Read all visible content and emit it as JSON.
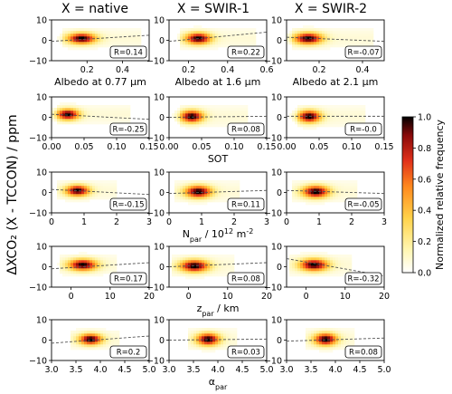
{
  "figure": {
    "column_titles": [
      "X = native",
      "X = SWIR-1",
      "X = SWIR-2"
    ],
    "ylabel": "ΔXCO₂ (X - TCCON) / ppm",
    "colorbar": {
      "label": "Normalized relative frequency",
      "ticks": [
        "0.0",
        "0.2",
        "0.4",
        "0.6",
        "0.8",
        "1.0"
      ],
      "colors": [
        "#ffffff",
        "#fff6b0",
        "#ffd24a",
        "#ff8a1e",
        "#e0301a",
        "#8a0a0a",
        "#000000"
      ]
    }
  },
  "chart_data": [
    {
      "type": "heatmap",
      "row": 0,
      "col": 0,
      "xlabel": "Albedo at 0.77 μm",
      "xlim": [
        0,
        0.55
      ],
      "ylim": [
        -10,
        10
      ],
      "xticks": [
        {
          "v": 0.2,
          "t": "0.2"
        },
        {
          "v": 0.4,
          "t": "0.4"
        }
      ],
      "yticks": [
        {
          "v": -10,
          "t": "−10"
        },
        {
          "v": 0,
          "t": "0"
        },
        {
          "v": 10,
          "t": "10"
        }
      ],
      "center": [
        0.17,
        1.0
      ],
      "spread": [
        0.055,
        1.8
      ],
      "cloud_x": [
        0.06,
        0.5
      ],
      "fit": {
        "x": [
          0,
          0.55
        ],
        "y": [
          -0.5,
          2.5
        ]
      },
      "r_label": "R=0.14"
    },
    {
      "type": "heatmap",
      "row": 0,
      "col": 1,
      "xlabel": "Albedo at 1.6 μm",
      "xlim": [
        0.1,
        0.6
      ],
      "ylim": [
        -10,
        10
      ],
      "xticks": [
        {
          "v": 0.2,
          "t": "0.2"
        },
        {
          "v": 0.4,
          "t": "0.4"
        },
        {
          "v": 0.6,
          "t": "0.6"
        }
      ],
      "yticks": [
        {
          "v": -10,
          "t": "−10"
        },
        {
          "v": 0,
          "t": "0"
        },
        {
          "v": 10,
          "t": "10"
        }
      ],
      "center": [
        0.25,
        1.0
      ],
      "spread": [
        0.045,
        1.9
      ],
      "cloud_x": [
        0.15,
        0.55
      ],
      "fit": {
        "x": [
          0.1,
          0.6
        ],
        "y": [
          -0.5,
          4.0
        ]
      },
      "r_label": "R=0.22"
    },
    {
      "type": "heatmap",
      "row": 0,
      "col": 2,
      "xlabel": "Albedo at 2.1 μm",
      "xlim": [
        0.05,
        0.5
      ],
      "ylim": [
        -10,
        10
      ],
      "xticks": [
        {
          "v": 0.2,
          "t": "0.2"
        },
        {
          "v": 0.4,
          "t": "0.4"
        }
      ],
      "yticks": [
        {
          "v": -10,
          "t": "−10"
        },
        {
          "v": 0,
          "t": "0"
        },
        {
          "v": 10,
          "t": "10"
        }
      ],
      "center": [
        0.15,
        1.0
      ],
      "spread": [
        0.045,
        1.9
      ],
      "cloud_x": [
        0.08,
        0.45
      ],
      "fit": {
        "x": [
          0.05,
          0.5
        ],
        "y": [
          1.5,
          -0.5
        ]
      },
      "r_label": "R=-0.07"
    },
    {
      "type": "heatmap",
      "row": 1,
      "col": 0,
      "xlabel": "",
      "xlim": [
        0,
        0.15
      ],
      "ylim": [
        -10,
        10
      ],
      "xticks": [
        {
          "v": 0.0,
          "t": "0.00"
        },
        {
          "v": 0.05,
          "t": "0.05"
        },
        {
          "v": 0.1,
          "t": "0.10"
        },
        {
          "v": 0.15,
          "t": "0.15"
        }
      ],
      "yticks": [
        {
          "v": -10,
          "t": "−10"
        },
        {
          "v": 0,
          "t": "0"
        },
        {
          "v": 10,
          "t": "10"
        }
      ],
      "center": [
        0.025,
        1.5
      ],
      "spread": [
        0.012,
        1.8
      ],
      "cloud_x": [
        0.01,
        0.12
      ],
      "fit": {
        "x": [
          0,
          0.15
        ],
        "y": [
          1.5,
          -1.0
        ]
      },
      "r_label": "R=-0.25"
    },
    {
      "type": "heatmap",
      "row": 1,
      "col": 1,
      "xlabel": "SOT",
      "xlim": [
        0,
        0.15
      ],
      "ylim": [
        -10,
        10
      ],
      "xticks": [
        {
          "v": 0.0,
          "t": "0.00"
        },
        {
          "v": 0.05,
          "t": "0.05"
        },
        {
          "v": 0.1,
          "t": "0.10"
        },
        {
          "v": 0.15,
          "t": "0.15"
        }
      ],
      "yticks": [
        {
          "v": -10,
          "t": "−10"
        },
        {
          "v": 0,
          "t": "0"
        },
        {
          "v": 10,
          "t": "10"
        }
      ],
      "center": [
        0.035,
        0.5
      ],
      "spread": [
        0.012,
        2.0
      ],
      "cloud_x": [
        0.015,
        0.12
      ],
      "fit": {
        "x": [
          0,
          0.15
        ],
        "y": [
          0.0,
          0.5
        ]
      },
      "r_label": "R=0.08"
    },
    {
      "type": "heatmap",
      "row": 1,
      "col": 2,
      "xlabel": "",
      "xlim": [
        0,
        0.15
      ],
      "ylim": [
        -10,
        10
      ],
      "xticks": [
        {
          "v": 0.0,
          "t": "0.00"
        },
        {
          "v": 0.05,
          "t": "0.05"
        },
        {
          "v": 0.1,
          "t": "0.10"
        },
        {
          "v": 0.15,
          "t": "0.15"
        }
      ],
      "yticks": [
        {
          "v": -10,
          "t": "−10"
        },
        {
          "v": 0,
          "t": "0"
        },
        {
          "v": 10,
          "t": "10"
        }
      ],
      "center": [
        0.035,
        0.5
      ],
      "spread": [
        0.012,
        2.0
      ],
      "cloud_x": [
        0.015,
        0.12
      ],
      "fit": {
        "x": [
          0,
          0.15
        ],
        "y": [
          0.5,
          0.5
        ]
      },
      "r_label": "R=-0.0"
    },
    {
      "type": "heatmap",
      "row": 2,
      "col": 0,
      "xlabel": "",
      "xlim": [
        0,
        3
      ],
      "ylim": [
        -10,
        10
      ],
      "xticks": [
        {
          "v": 0,
          "t": "0"
        },
        {
          "v": 1,
          "t": "1"
        },
        {
          "v": 2,
          "t": "2"
        },
        {
          "v": 3,
          "t": "3"
        }
      ],
      "yticks": [
        {
          "v": -10,
          "t": "−10"
        },
        {
          "v": 0,
          "t": "0"
        },
        {
          "v": 10,
          "t": "10"
        }
      ],
      "center": [
        0.8,
        1.0
      ],
      "spread": [
        0.25,
        1.8
      ],
      "cloud_x": [
        0.2,
        2.0
      ],
      "fit": {
        "x": [
          0,
          3
        ],
        "y": [
          1.5,
          -1.0
        ]
      },
      "r_label": "R=-0.15"
    },
    {
      "type": "heatmap",
      "row": 2,
      "col": 1,
      "xlabel": "N_par / 10^12 m^-2",
      "xlim": [
        0,
        3
      ],
      "ylim": [
        -10,
        10
      ],
      "xticks": [
        {
          "v": 0,
          "t": "0"
        },
        {
          "v": 1,
          "t": "1"
        },
        {
          "v": 2,
          "t": "2"
        },
        {
          "v": 3,
          "t": "3"
        }
      ],
      "yticks": [
        {
          "v": -10,
          "t": "−10"
        },
        {
          "v": 0,
          "t": "0"
        },
        {
          "v": 10,
          "t": "10"
        }
      ],
      "center": [
        0.9,
        0.5
      ],
      "spread": [
        0.28,
        2.0
      ],
      "cloud_x": [
        0.2,
        2.2
      ],
      "fit": {
        "x": [
          0,
          3
        ],
        "y": [
          -0.5,
          1.0
        ]
      },
      "r_label": "R=0.11"
    },
    {
      "type": "heatmap",
      "row": 2,
      "col": 2,
      "xlabel": "",
      "xlim": [
        0,
        3
      ],
      "ylim": [
        -10,
        10
      ],
      "xticks": [
        {
          "v": 0,
          "t": "0"
        },
        {
          "v": 1,
          "t": "1"
        },
        {
          "v": 2,
          "t": "2"
        },
        {
          "v": 3,
          "t": "3"
        }
      ],
      "yticks": [
        {
          "v": -10,
          "t": "−10"
        },
        {
          "v": 0,
          "t": "0"
        },
        {
          "v": 10,
          "t": "10"
        }
      ],
      "center": [
        0.9,
        0.5
      ],
      "spread": [
        0.28,
        2.0
      ],
      "cloud_x": [
        0.2,
        2.2
      ],
      "fit": {
        "x": [
          0,
          3
        ],
        "y": [
          1.0,
          -0.5
        ]
      },
      "r_label": "R=-0.05"
    },
    {
      "type": "heatmap",
      "row": 3,
      "col": 0,
      "xlabel": "",
      "xlim": [
        -5,
        20
      ],
      "ylim": [
        -10,
        10
      ],
      "xticks": [
        {
          "v": 0,
          "t": "0"
        },
        {
          "v": 10,
          "t": "10"
        },
        {
          "v": 20,
          "t": "20"
        }
      ],
      "yticks": [
        {
          "v": -10,
          "t": "−10"
        },
        {
          "v": 0,
          "t": "0"
        },
        {
          "v": 10,
          "t": "10"
        }
      ],
      "center": [
        3,
        1.0
      ],
      "spread": [
        2.5,
        1.9
      ],
      "cloud_x": [
        -3,
        12
      ],
      "fit": {
        "x": [
          -5,
          20
        ],
        "y": [
          -1.0,
          2.0
        ]
      },
      "r_label": "R=0.17"
    },
    {
      "type": "heatmap",
      "row": 3,
      "col": 1,
      "xlabel": "z_par / km",
      "xlim": [
        -5,
        20
      ],
      "ylim": [
        -10,
        10
      ],
      "xticks": [
        {
          "v": 0,
          "t": "0"
        },
        {
          "v": 10,
          "t": "10"
        },
        {
          "v": 20,
          "t": "20"
        }
      ],
      "yticks": [
        {
          "v": -10,
          "t": "−10"
        },
        {
          "v": 0,
          "t": "0"
        },
        {
          "v": 10,
          "t": "10"
        }
      ],
      "center": [
        1.5,
        0.5
      ],
      "spread": [
        2.5,
        2.0
      ],
      "cloud_x": [
        -4,
        12
      ],
      "fit": {
        "x": [
          -5,
          20
        ],
        "y": [
          0.0,
          2.0
        ]
      },
      "r_label": "R=0.08"
    },
    {
      "type": "heatmap",
      "row": 3,
      "col": 2,
      "xlabel": "",
      "xlim": [
        -5,
        20
      ],
      "ylim": [
        -10,
        10
      ],
      "xticks": [
        {
          "v": 0,
          "t": "0"
        },
        {
          "v": 10,
          "t": "10"
        },
        {
          "v": 20,
          "t": "20"
        }
      ],
      "yticks": [
        {
          "v": -10,
          "t": "−10"
        },
        {
          "v": 0,
          "t": "0"
        },
        {
          "v": 10,
          "t": "10"
        }
      ],
      "center": [
        2,
        1.0
      ],
      "spread": [
        2.5,
        2.0
      ],
      "cloud_x": [
        -4,
        12
      ],
      "fit": {
        "x": [
          -5,
          20
        ],
        "y": [
          4.0,
          -4.5
        ]
      },
      "r_label": "R=-0.32"
    },
    {
      "type": "heatmap",
      "row": 4,
      "col": 0,
      "xlabel": "",
      "xlim": [
        3.0,
        5.0
      ],
      "ylim": [
        -10,
        10
      ],
      "xticks": [
        {
          "v": 3.0,
          "t": "3.0"
        },
        {
          "v": 3.5,
          "t": "3.5"
        },
        {
          "v": 4.0,
          "t": "4.0"
        },
        {
          "v": 4.5,
          "t": "4.5"
        },
        {
          "v": 5.0,
          "t": "5.0"
        }
      ],
      "yticks": [
        {
          "v": -10,
          "t": "−10"
        },
        {
          "v": 0,
          "t": "0"
        },
        {
          "v": 10,
          "t": "10"
        }
      ],
      "center": [
        3.8,
        0.5
      ],
      "spread": [
        0.16,
        1.8
      ],
      "cloud_x": [
        3.4,
        4.4
      ],
      "fit": {
        "x": [
          3.0,
          5.0
        ],
        "y": [
          -1.5,
          2.0
        ]
      },
      "r_label": "R=0.2"
    },
    {
      "type": "heatmap",
      "row": 4,
      "col": 1,
      "xlabel": "α_par",
      "xlim": [
        3.0,
        5.0
      ],
      "ylim": [
        -10,
        10
      ],
      "xticks": [
        {
          "v": 3.0,
          "t": "3.0"
        },
        {
          "v": 3.5,
          "t": "3.5"
        },
        {
          "v": 4.0,
          "t": "4.0"
        },
        {
          "v": 4.5,
          "t": "4.5"
        },
        {
          "v": 5.0,
          "t": "5.0"
        }
      ],
      "yticks": [
        {
          "v": -10,
          "t": "−10"
        },
        {
          "v": 0,
          "t": "0"
        },
        {
          "v": 10,
          "t": "10"
        }
      ],
      "center": [
        3.8,
        0.5
      ],
      "spread": [
        0.16,
        2.0
      ],
      "cloud_x": [
        3.4,
        4.4
      ],
      "fit": {
        "x": [
          3.0,
          5.0
        ],
        "y": [
          0.0,
          0.5
        ]
      },
      "r_label": "R=0.03"
    },
    {
      "type": "heatmap",
      "row": 4,
      "col": 2,
      "xlabel": "",
      "xlim": [
        3.0,
        5.0
      ],
      "ylim": [
        -10,
        10
      ],
      "xticks": [
        {
          "v": 3.0,
          "t": "3.0"
        },
        {
          "v": 3.5,
          "t": "3.5"
        },
        {
          "v": 4.0,
          "t": "4.0"
        },
        {
          "v": 4.5,
          "t": "4.5"
        },
        {
          "v": 5.0,
          "t": "5.0"
        }
      ],
      "yticks": [
        {
          "v": -10,
          "t": "−10"
        },
        {
          "v": 0,
          "t": "0"
        },
        {
          "v": 10,
          "t": "10"
        }
      ],
      "center": [
        3.8,
        0.5
      ],
      "spread": [
        0.16,
        2.0
      ],
      "cloud_x": [
        3.4,
        4.4
      ],
      "fit": {
        "x": [
          3.0,
          5.0
        ],
        "y": [
          -0.5,
          1.0
        ]
      },
      "r_label": "R=0.08"
    }
  ]
}
